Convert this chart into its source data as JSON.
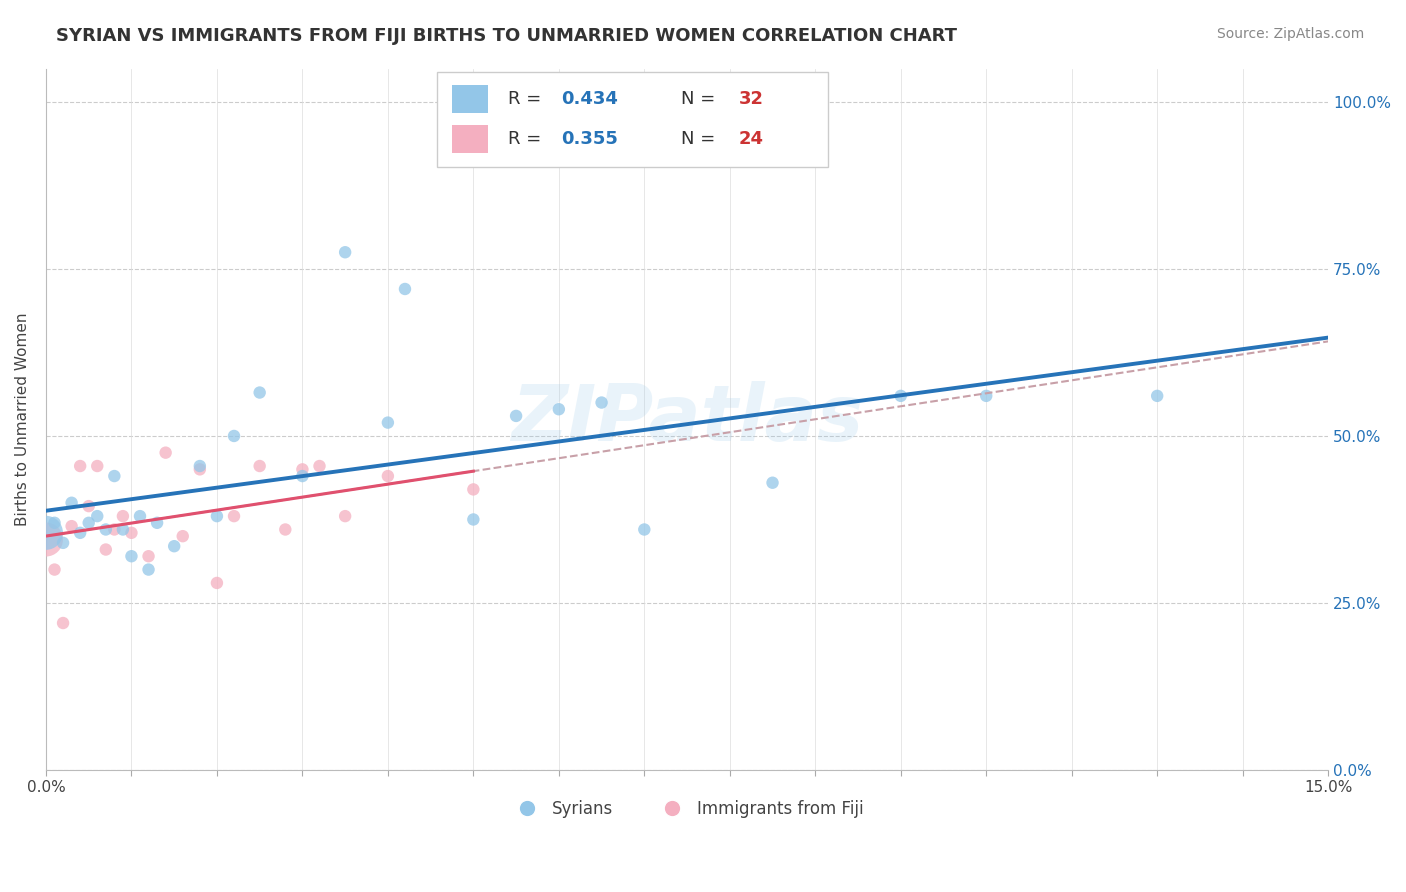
{
  "title": "SYRIAN VS IMMIGRANTS FROM FIJI BIRTHS TO UNMARRIED WOMEN CORRELATION CHART",
  "source": "Source: ZipAtlas.com",
  "ylabel": "Births to Unmarried Women",
  "xlim": [
    0.0,
    0.15
  ],
  "ylim": [
    0.0,
    1.05
  ],
  "ytick_labels_right": [
    "0.0%",
    "25.0%",
    "50.0%",
    "75.0%",
    "100.0%"
  ],
  "legend_r1": "R = 0.434",
  "legend_n1": "N = 32",
  "legend_r2": "R = 0.355",
  "legend_n2": "N = 24",
  "watermark": "ZIPatlas",
  "blue_color": "#93c6e8",
  "pink_color": "#f4afc0",
  "blue_line_color": "#2673b8",
  "pink_line_color": "#e0506e",
  "gray_dash_color": "#c8a0a8",
  "syrians_x": [
    0.0,
    0.001,
    0.002,
    0.003,
    0.004,
    0.005,
    0.006,
    0.007,
    0.008,
    0.009,
    0.01,
    0.011,
    0.012,
    0.013,
    0.015,
    0.018,
    0.02,
    0.022,
    0.025,
    0.03,
    0.035,
    0.04,
    0.042,
    0.05,
    0.055,
    0.06,
    0.065,
    0.07,
    0.085,
    0.1,
    0.11,
    0.13
  ],
  "syrians_y": [
    0.355,
    0.37,
    0.34,
    0.4,
    0.355,
    0.37,
    0.38,
    0.36,
    0.44,
    0.36,
    0.32,
    0.38,
    0.3,
    0.37,
    0.335,
    0.455,
    0.38,
    0.5,
    0.565,
    0.44,
    0.775,
    0.52,
    0.72,
    0.375,
    0.53,
    0.54,
    0.55,
    0.36,
    0.43,
    0.56,
    0.56,
    0.56
  ],
  "fiji_x": [
    0.0,
    0.001,
    0.002,
    0.003,
    0.004,
    0.005,
    0.006,
    0.007,
    0.008,
    0.009,
    0.01,
    0.012,
    0.014,
    0.016,
    0.018,
    0.02,
    0.022,
    0.025,
    0.028,
    0.03,
    0.032,
    0.035,
    0.04,
    0.05
  ],
  "fiji_y": [
    0.345,
    0.3,
    0.22,
    0.365,
    0.455,
    0.395,
    0.455,
    0.33,
    0.36,
    0.38,
    0.355,
    0.32,
    0.475,
    0.35,
    0.45,
    0.28,
    0.38,
    0.455,
    0.36,
    0.45,
    0.455,
    0.38,
    0.44,
    0.42
  ],
  "blue_dot_size": 80,
  "blue_big_dot_size": 600,
  "pink_dot_size": 80,
  "pink_big_dot_size": 600,
  "label_blue": "Syrians",
  "label_pink": "Immigrants from Fiji"
}
